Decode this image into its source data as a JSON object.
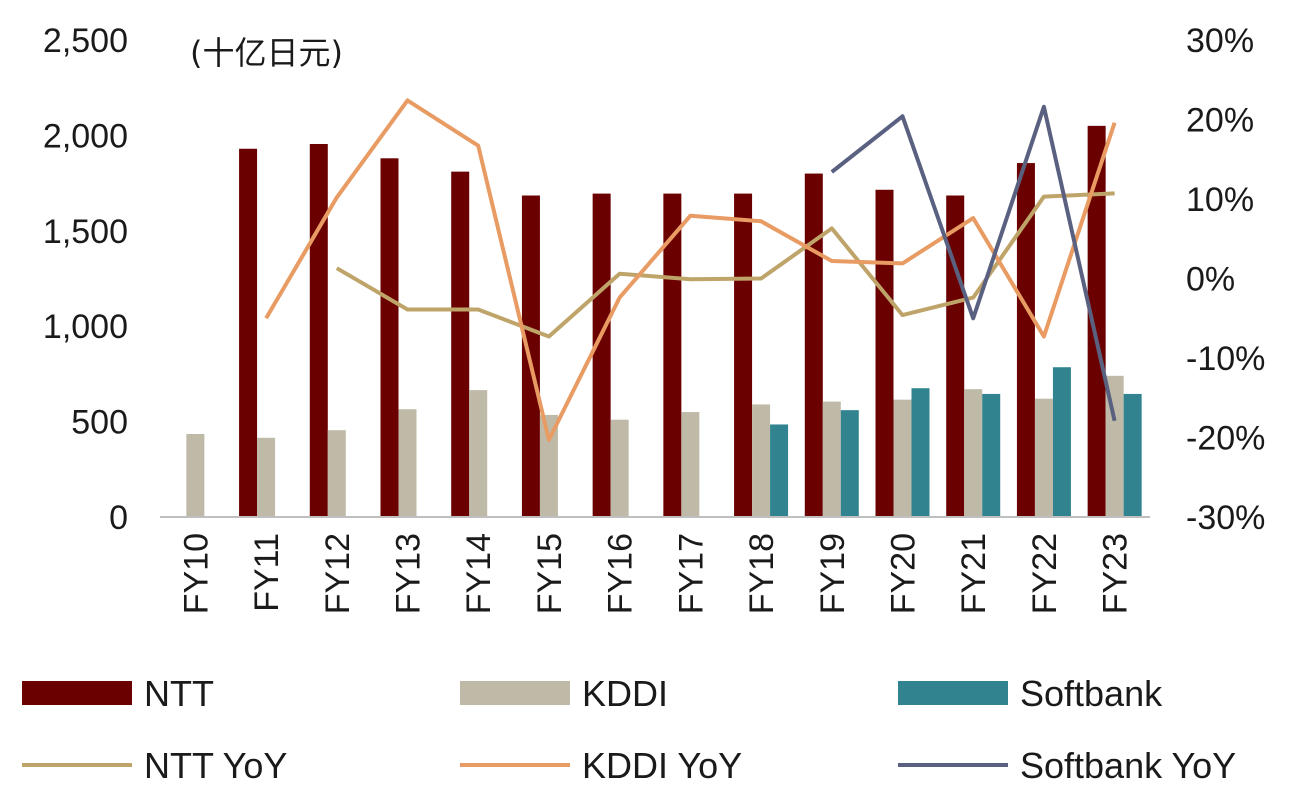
{
  "chart_data": {
    "type": "bar",
    "unit_label": "(十亿日元)",
    "categories": [
      "FY10",
      "FY11",
      "FY12",
      "FY13",
      "FY14",
      "FY15",
      "FY16",
      "FY17",
      "FY18",
      "FY19",
      "FY20",
      "FY21",
      "FY22",
      "FY23"
    ],
    "y_left": {
      "range": [
        0,
        2500
      ],
      "ticks": [
        "0",
        "500",
        "1,000",
        "1,500",
        "2,000",
        "2,500"
      ],
      "tick_values": [
        0,
        500,
        1000,
        1500,
        2000,
        2500
      ]
    },
    "y_right": {
      "range": [
        -30,
        30
      ],
      "ticks": [
        "-30%",
        "-20%",
        "-10%",
        "0%",
        "10%",
        "20%",
        "30%"
      ],
      "tick_values": [
        -30,
        -20,
        -10,
        0,
        10,
        20,
        30
      ]
    },
    "bar_series": [
      {
        "name": "NTT",
        "color": "#6b0000",
        "values": [
          null,
          1930,
          1955,
          1880,
          1810,
          1685,
          1695,
          1695,
          1695,
          1800,
          1715,
          1685,
          1855,
          2050
        ]
      },
      {
        "name": "KDDI",
        "color": "#bfbaa8",
        "values": [
          435,
          415,
          455,
          565,
          665,
          535,
          510,
          550,
          590,
          605,
          615,
          670,
          620,
          740
        ]
      },
      {
        "name": "Softbank",
        "color": "#31838f",
        "values": [
          null,
          null,
          null,
          null,
          null,
          null,
          null,
          null,
          485,
          560,
          675,
          645,
          785,
          645
        ]
      }
    ],
    "line_series": [
      {
        "name": "NTT YoY",
        "color": "#bfa46a",
        "values": [
          null,
          null,
          1.3,
          -3.9,
          -3.9,
          -7.3,
          0.6,
          -0.1,
          0.0,
          6.3,
          -4.6,
          -2.4,
          10.3,
          10.7
        ]
      },
      {
        "name": "KDDI YoY",
        "color": "#e89b62",
        "values": [
          null,
          -5.0,
          10.2,
          22.4,
          16.7,
          -20.3,
          -2.4,
          7.9,
          7.2,
          2.2,
          1.9,
          7.6,
          -7.3,
          19.6
        ]
      },
      {
        "name": "Softbank YoY",
        "color": "#5a6180",
        "values": [
          null,
          null,
          null,
          null,
          null,
          null,
          null,
          null,
          null,
          13.4,
          20.4,
          -5.0,
          21.6,
          -17.9
        ]
      }
    ],
    "grid": false,
    "legend": {
      "position": "bottom",
      "items": [
        {
          "label": "NTT",
          "kind": "bar",
          "color": "#6b0000"
        },
        {
          "label": "KDDI",
          "kind": "bar",
          "color": "#bfbaa8"
        },
        {
          "label": "Softbank",
          "kind": "bar",
          "color": "#31838f"
        },
        {
          "label": "NTT YoY",
          "kind": "line",
          "color": "#bfa46a"
        },
        {
          "label": "KDDI YoY",
          "kind": "line",
          "color": "#e89b62"
        },
        {
          "label": "Softbank YoY",
          "kind": "line",
          "color": "#5a6180"
        }
      ]
    }
  }
}
